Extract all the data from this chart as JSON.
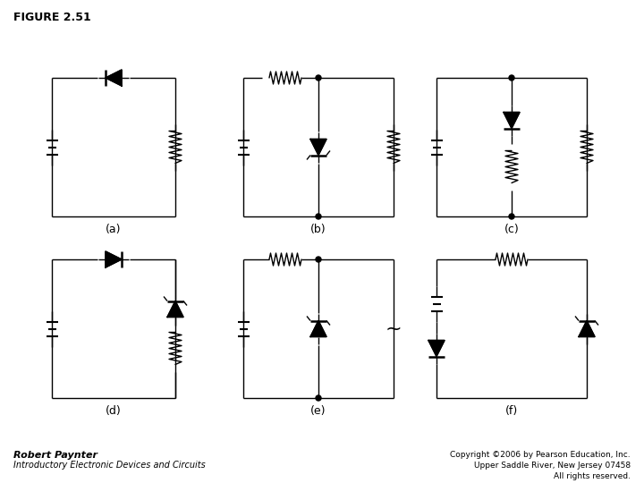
{
  "title": "FIGURE 2.51",
  "background_color": "#ffffff",
  "line_color": "#000000",
  "line_width": 1.0,
  "labels": [
    "(a)",
    "(b)",
    "(c)",
    "(d)",
    "(e)",
    "(f)"
  ],
  "footer_left_line1": "Robert Paynter",
  "footer_left_line2": "Introductory Electronic Devices and Circuits",
  "footer_right_line1": "Copyright ©2006 by Pearson Education, Inc.",
  "footer_right_line2": "Upper Saddle River, New Jersey 07458",
  "footer_right_line3": "All rights reserved."
}
